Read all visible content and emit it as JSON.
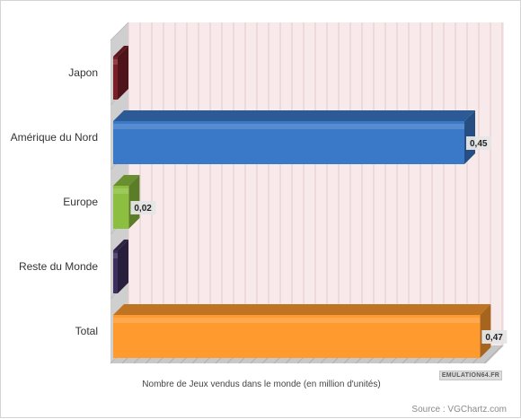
{
  "chart_data": {
    "type": "bar",
    "orientation": "horizontal",
    "style": "3d",
    "categories": [
      "Japon",
      "Amérique du Nord",
      "Europe",
      "Reste du Monde",
      "Total"
    ],
    "values": [
      0,
      0.45,
      0.02,
      0,
      0.47
    ],
    "data_labels": [
      "",
      "0,45",
      "0,02",
      "",
      "0,47"
    ],
    "bar_colors": [
      "#7a1f26",
      "#3a78c8",
      "#8cbf3f",
      "#3d2f5e",
      "#ff9a2e"
    ],
    "xlabel": "Nombre de Jeux vendus dans le monde (en million d'unités)",
    "ylabel": "",
    "xlim": [
      0,
      0.47
    ],
    "grid": "vertical",
    "legend": "none",
    "plot_background": "#f8eaea"
  },
  "logo_text": "EMULATION64.FR",
  "source": "Source : VGChartz.com"
}
